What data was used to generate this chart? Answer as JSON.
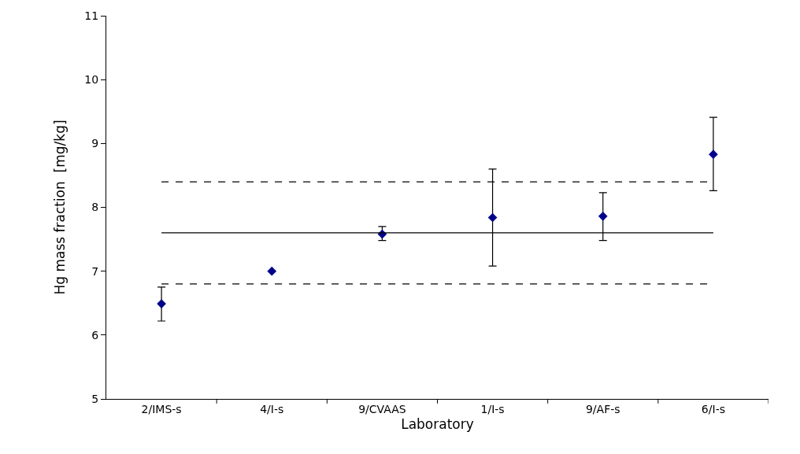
{
  "chart_data": {
    "type": "scatter",
    "xlabel": "Laboratory",
    "ylabel": "Hg mass fraction  [mg/kg]",
    "categories": [
      "2/IMS-s",
      "4/I-s",
      "9/CVAAS",
      "1/I-s",
      "9/AF-s",
      "6/I-s"
    ],
    "series": [
      {
        "color": "#00008b",
        "values": [
          6.49,
          7.0,
          7.58,
          7.84,
          7.86,
          8.83
        ],
        "errors": [
          [
            6.22,
            6.75
          ],
          null,
          [
            7.48,
            7.7
          ],
          [
            7.08,
            8.6
          ],
          [
            7.48,
            8.23
          ],
          [
            8.26,
            9.41
          ]
        ]
      }
    ],
    "ylim": [
      5,
      11
    ],
    "yticks": [
      5,
      6,
      7,
      8,
      9,
      10,
      11
    ],
    "grid": false,
    "marker": "diamond",
    "ref_lines": [
      {
        "axis": "y",
        "value": 7.6,
        "line_style": "solid",
        "color": "#000000"
      },
      {
        "axis": "y",
        "value": 8.4,
        "line_style": "dashed",
        "color": "#000000"
      },
      {
        "axis": "y",
        "value": 6.8,
        "line_style": "dashed",
        "color": "#000000"
      }
    ]
  }
}
